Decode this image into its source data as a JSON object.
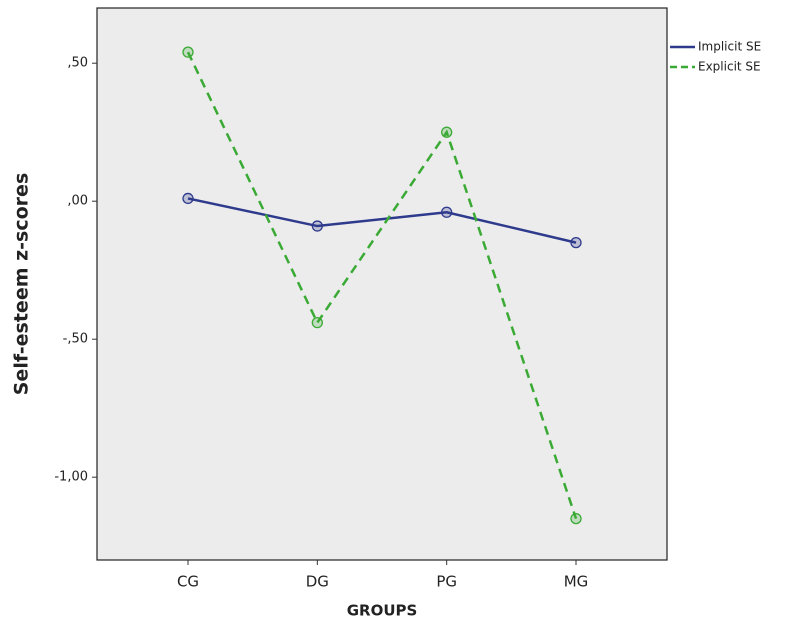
{
  "chart_data": {
    "type": "line",
    "y_label": "Self-esteem z-scores",
    "x_label": "GROUPS",
    "categories": [
      "CG",
      "DG",
      "PG",
      "MG"
    ],
    "series": [
      {
        "name": "Implicit SE",
        "color": "#2e3a8c",
        "dashed": false,
        "values": [
          0.01,
          -0.09,
          -0.04,
          -0.15
        ]
      },
      {
        "name": "Explicit SE",
        "color": "#3aaa35",
        "dashed": true,
        "values": [
          0.54,
          -0.44,
          0.25,
          -1.15
        ]
      }
    ],
    "ylim": [
      -1.3,
      0.7
    ],
    "yticks": [
      {
        "value": 0.5,
        "label": ",50"
      },
      {
        "value": 0,
        "label": ",00"
      },
      {
        "value": -0.5,
        "label": "-,50"
      },
      {
        "value": -1,
        "label": "-1,00"
      }
    ],
    "legend": "top-right-outside"
  }
}
